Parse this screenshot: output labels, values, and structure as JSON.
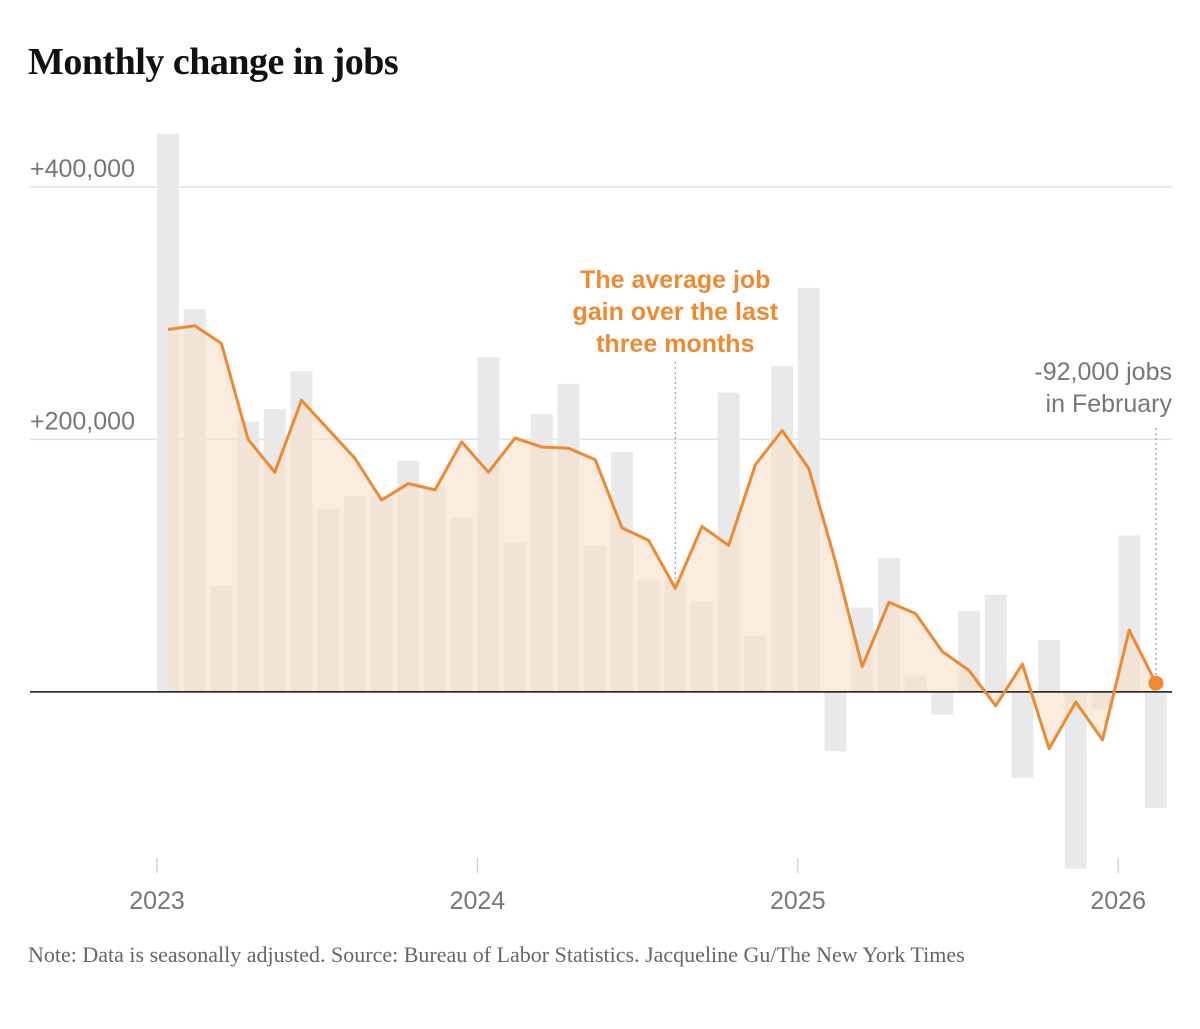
{
  "title": "Monthly change in jobs",
  "chart_data": {
    "type": "bar",
    "y_ticks": [
      {
        "value": 400000,
        "label": "+400,000"
      },
      {
        "value": 200000,
        "label": "+200,000"
      }
    ],
    "ylim": [
      -145000,
      445000
    ],
    "grid": true,
    "x_ticks": [
      {
        "label": "2023",
        "month_index": 0
      },
      {
        "label": "2024",
        "month_index": 12
      },
      {
        "label": "2025",
        "month_index": 24
      },
      {
        "label": "2026",
        "month_index": 36
      }
    ],
    "monthly_change": [
      442000,
      303000,
      84000,
      214000,
      224000,
      254000,
      145000,
      155000,
      155000,
      183000,
      162000,
      138000,
      265000,
      118000,
      220000,
      244000,
      116000,
      190000,
      89000,
      88000,
      72000,
      237000,
      44000,
      258000,
      320000,
      -47000,
      67000,
      106000,
      13000,
      -18000,
      64000,
      77000,
      -68000,
      41000,
      -140000,
      -14000,
      124000,
      -92000
    ],
    "three_month_average": [
      287000,
      290000,
      276000,
      200000,
      174000,
      231000,
      208000,
      185000,
      152000,
      165000,
      160000,
      198000,
      174000,
      201000,
      194000,
      193000,
      184000,
      130000,
      120000,
      82000,
      131000,
      116000,
      180000,
      207000,
      177000,
      103000,
      20000,
      71000,
      62000,
      32000,
      17000,
      -11000,
      22000,
      -45000,
      -8000,
      -38000,
      49000,
      7000
    ],
    "colors": {
      "bars": "#e9e9e9",
      "area": "#f7e0c8",
      "line": "#ee8a32",
      "baseline": "#111111",
      "grid": "#e2e2e2",
      "labels": "#777777"
    },
    "annotations": [
      {
        "lines": [
          "The average job",
          "gain over the last",
          "three months"
        ],
        "month_index": 19,
        "color": "#ee8a32"
      },
      {
        "lines": [
          "-92,000 jobs",
          "in February"
        ],
        "month_index": 37,
        "color": "#777777"
      }
    ]
  },
  "note": {
    "note": "Note: Data is seasonally adjusted.",
    "source": "Source: Bureau of Labor Statistics.",
    "credit": "Jacqueline Gu/The New York Times"
  }
}
